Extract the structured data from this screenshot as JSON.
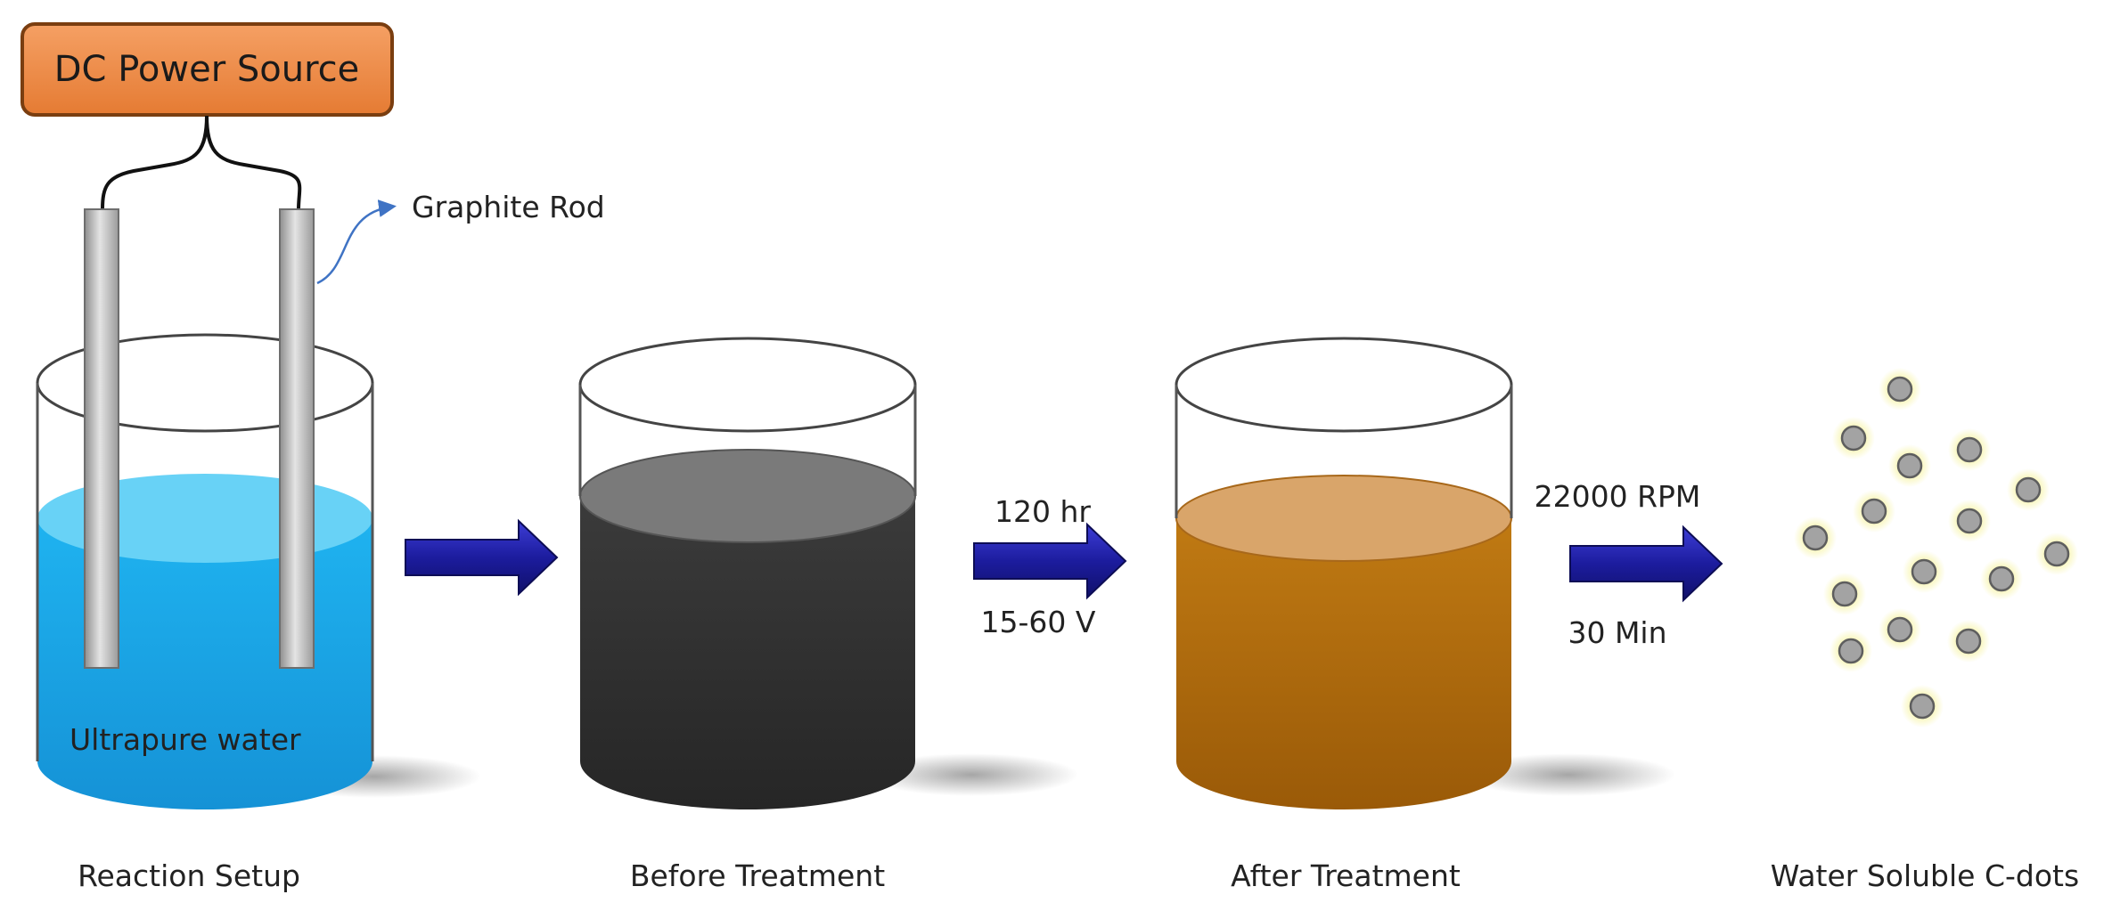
{
  "power_source": {
    "label": "DC Power Source"
  },
  "electrode": {
    "label": "Graphite Rod"
  },
  "beaker1": {
    "content_label": "Ultrapure water",
    "caption": "Reaction Setup"
  },
  "beaker2": {
    "caption": "Before Treatment"
  },
  "beaker3": {
    "caption": "After Treatment"
  },
  "product": {
    "caption": "Water Soluble C-dots"
  },
  "step2": {
    "top": "120 hr",
    "bottom": "15-60 V"
  },
  "step3": {
    "top": "22000 RPM",
    "bottom": "30 Min"
  },
  "colors": {
    "power_box": "#ee8a45",
    "water": "#1aa8e6",
    "dark_liquid": "#3a3a3a",
    "brown_liquid": "#b8710e",
    "arrow": "#1c1c9e",
    "dot": "#a3a3a3",
    "dot_glow": "#f6f3a2"
  }
}
